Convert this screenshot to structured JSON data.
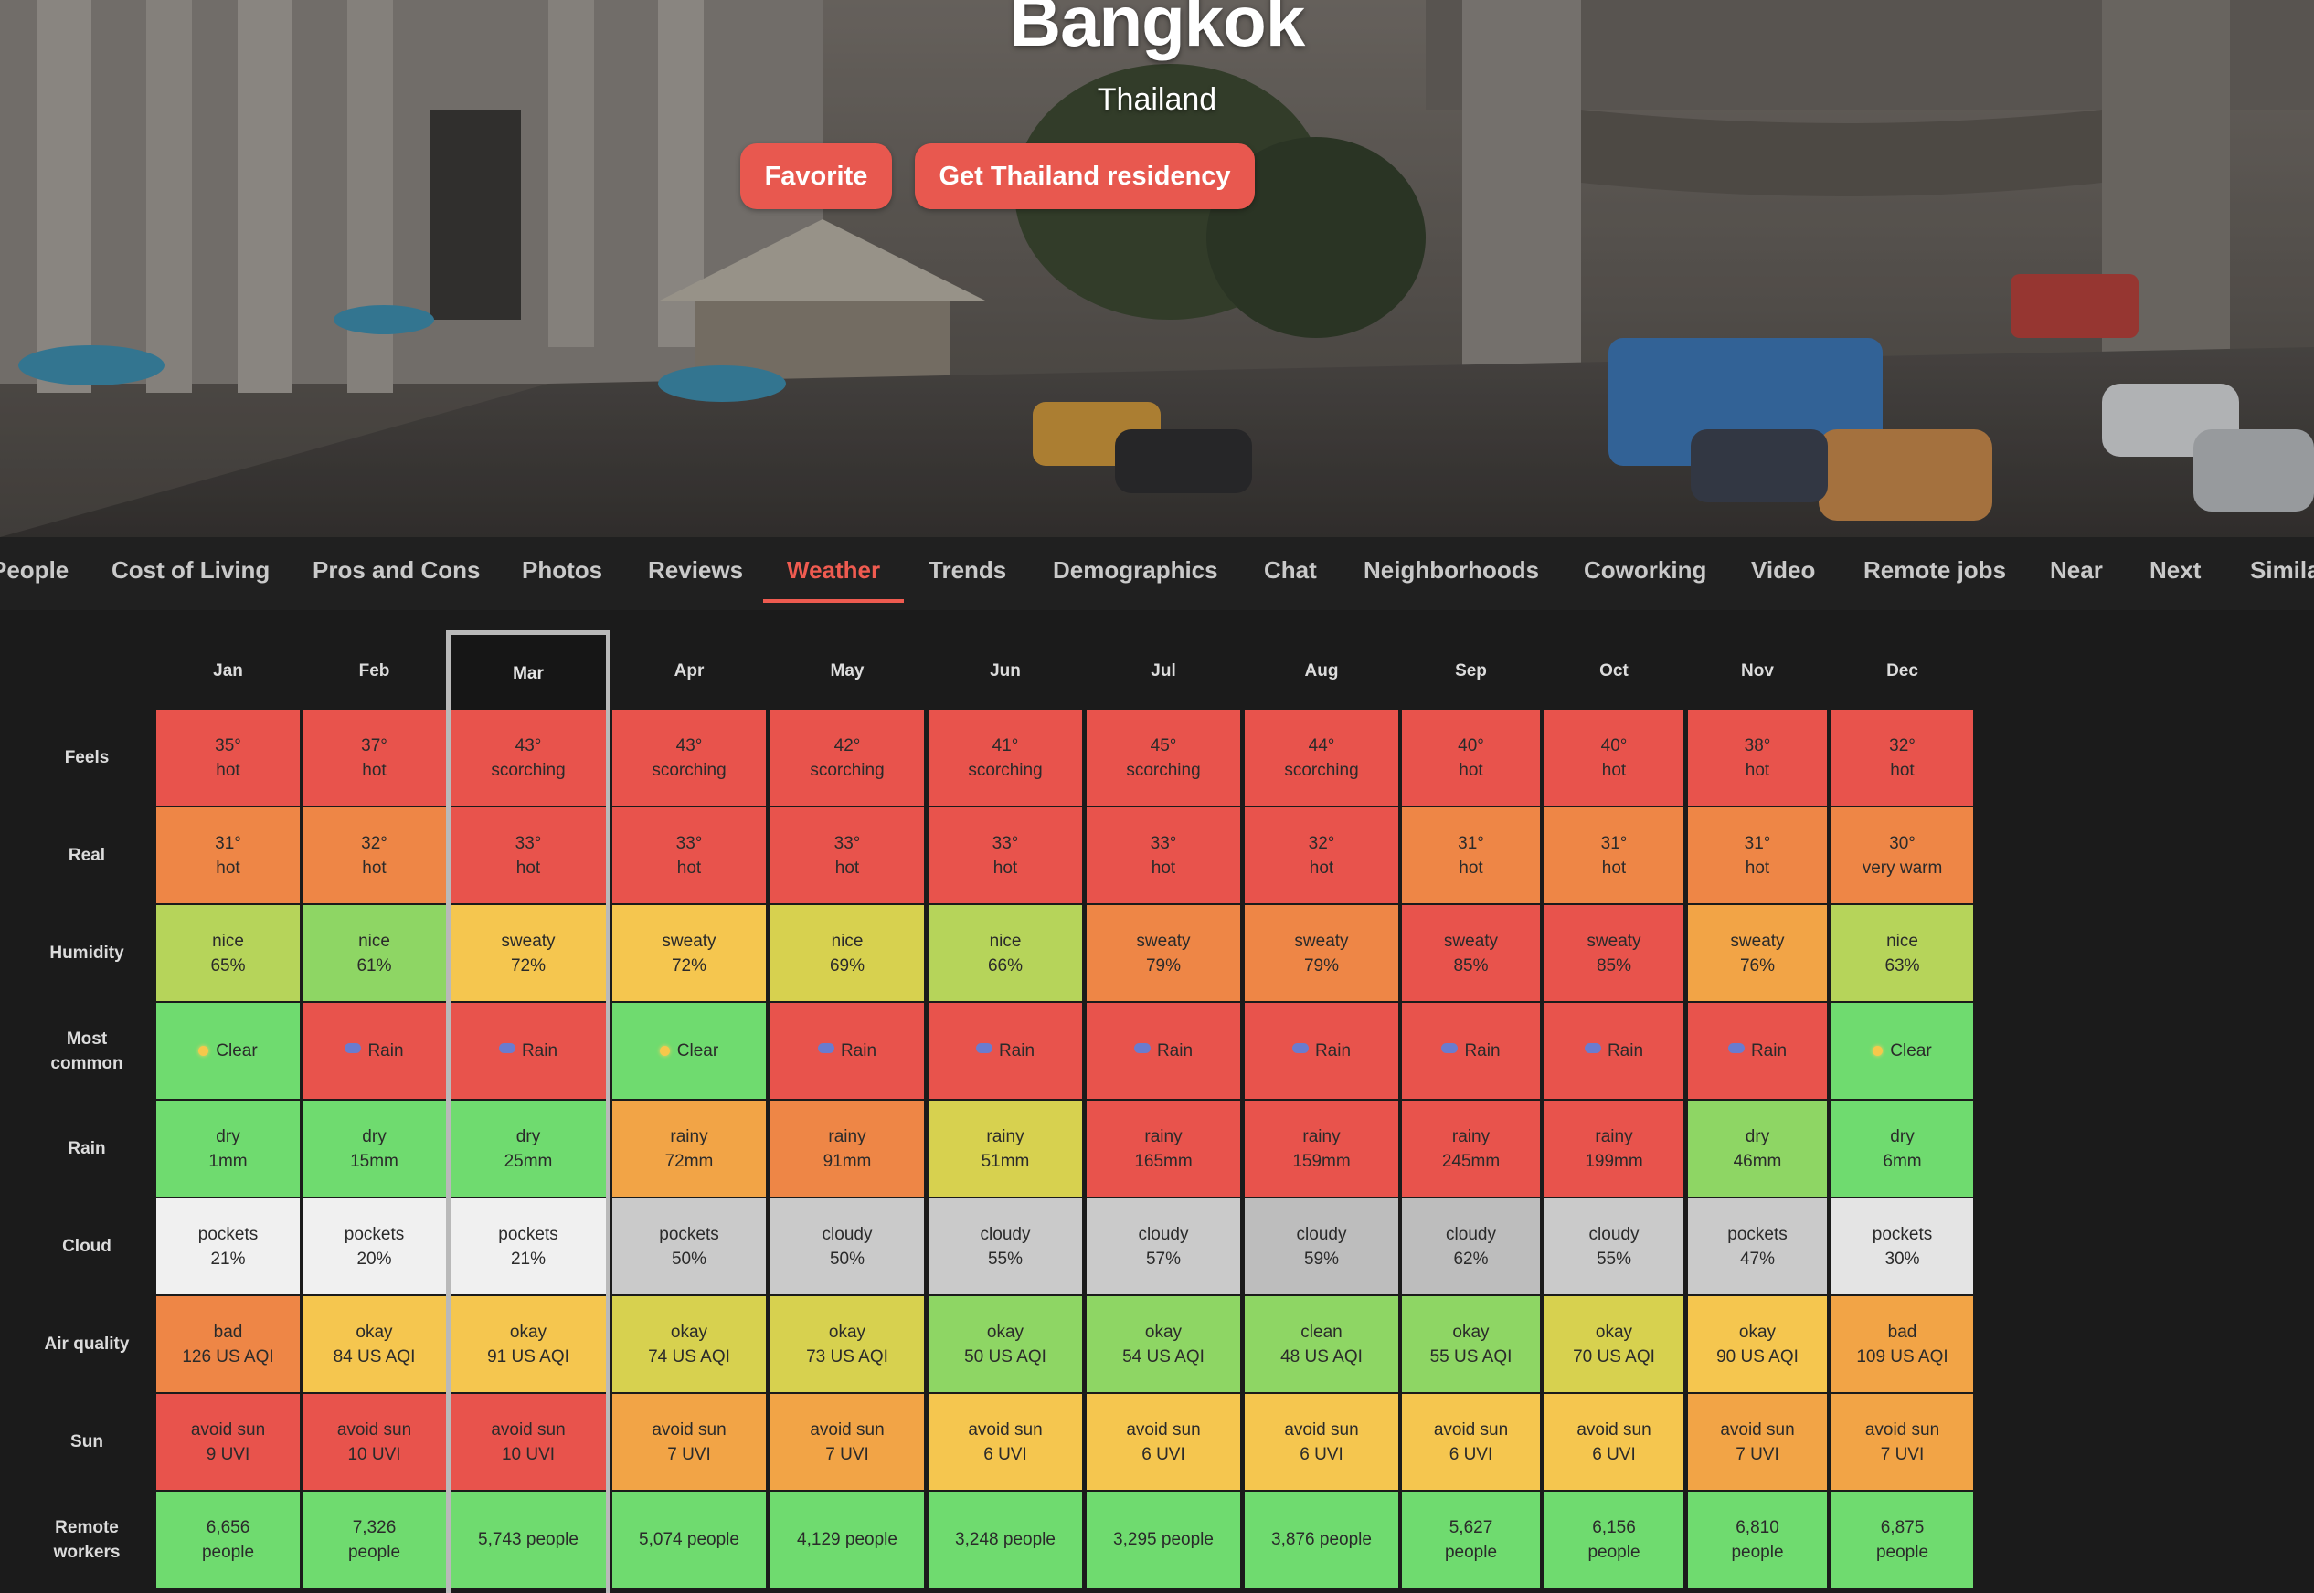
{
  "hero": {
    "title": "Bangkok",
    "subtitle": "Thailand",
    "favorite_label": "Favorite",
    "residency_label": "Get Thailand residency",
    "accent": "#e8584f"
  },
  "tabs": [
    {
      "label": "People"
    },
    {
      "label": "Cost of Living"
    },
    {
      "label": "Pros and Cons"
    },
    {
      "label": "Photos"
    },
    {
      "label": "Reviews"
    },
    {
      "label": "Weather",
      "active": true
    },
    {
      "label": "Trends"
    },
    {
      "label": "Demographics"
    },
    {
      "label": "Chat"
    },
    {
      "label": "Neighborhoods"
    },
    {
      "label": "Coworking"
    },
    {
      "label": "Video"
    },
    {
      "label": "Remote jobs"
    },
    {
      "label": "Near"
    },
    {
      "label": "Next"
    },
    {
      "label": "Similar"
    }
  ],
  "weather": {
    "months": [
      "Jan",
      "Feb",
      "Mar",
      "Apr",
      "May",
      "Jun",
      "Jul",
      "Aug",
      "Sep",
      "Oct",
      "Nov",
      "Dec"
    ],
    "selected_month": "Mar",
    "colors": {
      "red": "#e8534c",
      "orange": "#ee8646",
      "lightorange": "#f2a446",
      "yellow": "#f5c64f",
      "yellowgreen": "#d7d14f",
      "lime": "#b6d45a",
      "green": "#6fdb6f",
      "ltgreen": "#8ed664",
      "white": "#f0f0f0",
      "lightgray": "#e4e4e4",
      "gray": "#cacaca",
      "darkgray": "#bdbdbd"
    },
    "rows": [
      {
        "label": "Feels",
        "cells": [
          {
            "l1": "35°",
            "l2": "hot",
            "c": "red"
          },
          {
            "l1": "37°",
            "l2": "hot",
            "c": "red"
          },
          {
            "l1": "43°",
            "l2": "scorching",
            "c": "red"
          },
          {
            "l1": "43°",
            "l2": "scorching",
            "c": "red"
          },
          {
            "l1": "42°",
            "l2": "scorching",
            "c": "red"
          },
          {
            "l1": "41°",
            "l2": "scorching",
            "c": "red"
          },
          {
            "l1": "45°",
            "l2": "scorching",
            "c": "red"
          },
          {
            "l1": "44°",
            "l2": "scorching",
            "c": "red"
          },
          {
            "l1": "40°",
            "l2": "hot",
            "c": "red"
          },
          {
            "l1": "40°",
            "l2": "hot",
            "c": "red"
          },
          {
            "l1": "38°",
            "l2": "hot",
            "c": "red"
          },
          {
            "l1": "32°",
            "l2": "hot",
            "c": "red"
          }
        ]
      },
      {
        "label": "Real",
        "cells": [
          {
            "l1": "31°",
            "l2": "hot",
            "c": "orange"
          },
          {
            "l1": "32°",
            "l2": "hot",
            "c": "orange"
          },
          {
            "l1": "33°",
            "l2": "hot",
            "c": "red"
          },
          {
            "l1": "33°",
            "l2": "hot",
            "c": "red"
          },
          {
            "l1": "33°",
            "l2": "hot",
            "c": "red"
          },
          {
            "l1": "33°",
            "l2": "hot",
            "c": "red"
          },
          {
            "l1": "33°",
            "l2": "hot",
            "c": "red"
          },
          {
            "l1": "32°",
            "l2": "hot",
            "c": "red"
          },
          {
            "l1": "31°",
            "l2": "hot",
            "c": "orange"
          },
          {
            "l1": "31°",
            "l2": "hot",
            "c": "orange"
          },
          {
            "l1": "31°",
            "l2": "hot",
            "c": "orange"
          },
          {
            "l1": "30°",
            "l2": "very warm",
            "c": "orange"
          }
        ]
      },
      {
        "label": "Humidity",
        "cells": [
          {
            "l1": "nice",
            "l2": "65%",
            "c": "lime"
          },
          {
            "l1": "nice",
            "l2": "61%",
            "c": "ltgreen"
          },
          {
            "l1": "sweaty",
            "l2": "72%",
            "c": "yellow"
          },
          {
            "l1": "sweaty",
            "l2": "72%",
            "c": "yellow"
          },
          {
            "l1": "nice",
            "l2": "69%",
            "c": "yellowgreen"
          },
          {
            "l1": "nice",
            "l2": "66%",
            "c": "lime"
          },
          {
            "l1": "sweaty",
            "l2": "79%",
            "c": "orange"
          },
          {
            "l1": "sweaty",
            "l2": "79%",
            "c": "orange"
          },
          {
            "l1": "sweaty",
            "l2": "85%",
            "c": "red"
          },
          {
            "l1": "sweaty",
            "l2": "85%",
            "c": "red"
          },
          {
            "l1": "sweaty",
            "l2": "76%",
            "c": "lightorange"
          },
          {
            "l1": "nice",
            "l2": "63%",
            "c": "lime"
          }
        ]
      },
      {
        "label": "Most common",
        "cells": [
          {
            "l1": "Clear",
            "icon": "sun",
            "c": "green"
          },
          {
            "l1": "Rain",
            "icon": "rain",
            "c": "red"
          },
          {
            "l1": "Rain",
            "icon": "rain",
            "c": "red"
          },
          {
            "l1": "Clear",
            "icon": "sun",
            "c": "green"
          },
          {
            "l1": "Rain",
            "icon": "rain",
            "c": "red"
          },
          {
            "l1": "Rain",
            "icon": "rain",
            "c": "red"
          },
          {
            "l1": "Rain",
            "icon": "rain",
            "c": "red"
          },
          {
            "l1": "Rain",
            "icon": "rain",
            "c": "red"
          },
          {
            "l1": "Rain",
            "icon": "rain",
            "c": "red"
          },
          {
            "l1": "Rain",
            "icon": "rain",
            "c": "red"
          },
          {
            "l1": "Rain",
            "icon": "rain",
            "c": "red"
          },
          {
            "l1": "Clear",
            "icon": "sun",
            "c": "green"
          }
        ]
      },
      {
        "label": "Rain",
        "cells": [
          {
            "l1": "dry",
            "l2": "1mm",
            "c": "green"
          },
          {
            "l1": "dry",
            "l2": "15mm",
            "c": "green"
          },
          {
            "l1": "dry",
            "l2": "25mm",
            "c": "green"
          },
          {
            "l1": "rainy",
            "l2": "72mm",
            "c": "lightorange"
          },
          {
            "l1": "rainy",
            "l2": "91mm",
            "c": "orange"
          },
          {
            "l1": "rainy",
            "l2": "51mm",
            "c": "yellowgreen"
          },
          {
            "l1": "rainy",
            "l2": "165mm",
            "c": "red"
          },
          {
            "l1": "rainy",
            "l2": "159mm",
            "c": "red"
          },
          {
            "l1": "rainy",
            "l2": "245mm",
            "c": "red"
          },
          {
            "l1": "rainy",
            "l2": "199mm",
            "c": "red"
          },
          {
            "l1": "dry",
            "l2": "46mm",
            "c": "ltgreen"
          },
          {
            "l1": "dry",
            "l2": "6mm",
            "c": "green"
          }
        ]
      },
      {
        "label": "Cloud",
        "cells": [
          {
            "l1": "pockets",
            "l2": "21%",
            "c": "white"
          },
          {
            "l1": "pockets",
            "l2": "20%",
            "c": "white"
          },
          {
            "l1": "pockets",
            "l2": "21%",
            "c": "white"
          },
          {
            "l1": "pockets",
            "l2": "50%",
            "c": "gray"
          },
          {
            "l1": "cloudy",
            "l2": "50%",
            "c": "gray"
          },
          {
            "l1": "cloudy",
            "l2": "55%",
            "c": "gray"
          },
          {
            "l1": "cloudy",
            "l2": "57%",
            "c": "gray"
          },
          {
            "l1": "cloudy",
            "l2": "59%",
            "c": "darkgray"
          },
          {
            "l1": "cloudy",
            "l2": "62%",
            "c": "darkgray"
          },
          {
            "l1": "cloudy",
            "l2": "55%",
            "c": "gray"
          },
          {
            "l1": "pockets",
            "l2": "47%",
            "c": "gray"
          },
          {
            "l1": "pockets",
            "l2": "30%",
            "c": "lightgray"
          }
        ]
      },
      {
        "label": "Air quality",
        "cells": [
          {
            "l1": "bad",
            "l2": "126 US AQI",
            "c": "orange"
          },
          {
            "l1": "okay",
            "l2": "84 US AQI",
            "c": "yellow"
          },
          {
            "l1": "okay",
            "l2": "91 US AQI",
            "c": "yellow"
          },
          {
            "l1": "okay",
            "l2": "74 US AQI",
            "c": "yellowgreen"
          },
          {
            "l1": "okay",
            "l2": "73 US AQI",
            "c": "yellowgreen"
          },
          {
            "l1": "okay",
            "l2": "50 US AQI",
            "c": "ltgreen"
          },
          {
            "l1": "okay",
            "l2": "54 US AQI",
            "c": "ltgreen"
          },
          {
            "l1": "clean",
            "l2": "48 US AQI",
            "c": "ltgreen"
          },
          {
            "l1": "okay",
            "l2": "55 US AQI",
            "c": "ltgreen"
          },
          {
            "l1": "okay",
            "l2": "70 US AQI",
            "c": "yellowgreen"
          },
          {
            "l1": "okay",
            "l2": "90 US AQI",
            "c": "yellow"
          },
          {
            "l1": "bad",
            "l2": "109 US AQI",
            "c": "lightorange"
          }
        ]
      },
      {
        "label": "Sun",
        "cells": [
          {
            "l1": "avoid sun",
            "l2": "9 UVI",
            "c": "red"
          },
          {
            "l1": "avoid sun",
            "l2": "10 UVI",
            "c": "red"
          },
          {
            "l1": "avoid sun",
            "l2": "10 UVI",
            "c": "red"
          },
          {
            "l1": "avoid sun",
            "l2": "7 UVI",
            "c": "lightorange"
          },
          {
            "l1": "avoid sun",
            "l2": "7 UVI",
            "c": "lightorange"
          },
          {
            "l1": "avoid sun",
            "l2": "6 UVI",
            "c": "yellow"
          },
          {
            "l1": "avoid sun",
            "l2": "6 UVI",
            "c": "yellow"
          },
          {
            "l1": "avoid sun",
            "l2": "6 UVI",
            "c": "yellow"
          },
          {
            "l1": "avoid sun",
            "l2": "6 UVI",
            "c": "yellow"
          },
          {
            "l1": "avoid sun",
            "l2": "6 UVI",
            "c": "yellow"
          },
          {
            "l1": "avoid sun",
            "l2": "7 UVI",
            "c": "lightorange"
          },
          {
            "l1": "avoid sun",
            "l2": "7 UVI",
            "c": "lightorange"
          }
        ]
      },
      {
        "label": "Remote workers",
        "cells": [
          {
            "l1": "6,656",
            "l2": "people",
            "c": "green"
          },
          {
            "l1": "7,326",
            "l2": "people",
            "c": "green"
          },
          {
            "l1": "5,743 people",
            "c": "green"
          },
          {
            "l1": "5,074 people",
            "c": "green"
          },
          {
            "l1": "4,129 people",
            "c": "green"
          },
          {
            "l1": "3,248 people",
            "c": "green"
          },
          {
            "l1": "3,295 people",
            "c": "green"
          },
          {
            "l1": "3,876 people",
            "c": "green"
          },
          {
            "l1": "5,627",
            "l2": "people",
            "c": "green"
          },
          {
            "l1": "6,156",
            "l2": "people",
            "c": "green"
          },
          {
            "l1": "6,810",
            "l2": "people",
            "c": "green"
          },
          {
            "l1": "6,875",
            "l2": "people",
            "c": "green"
          }
        ]
      }
    ]
  }
}
